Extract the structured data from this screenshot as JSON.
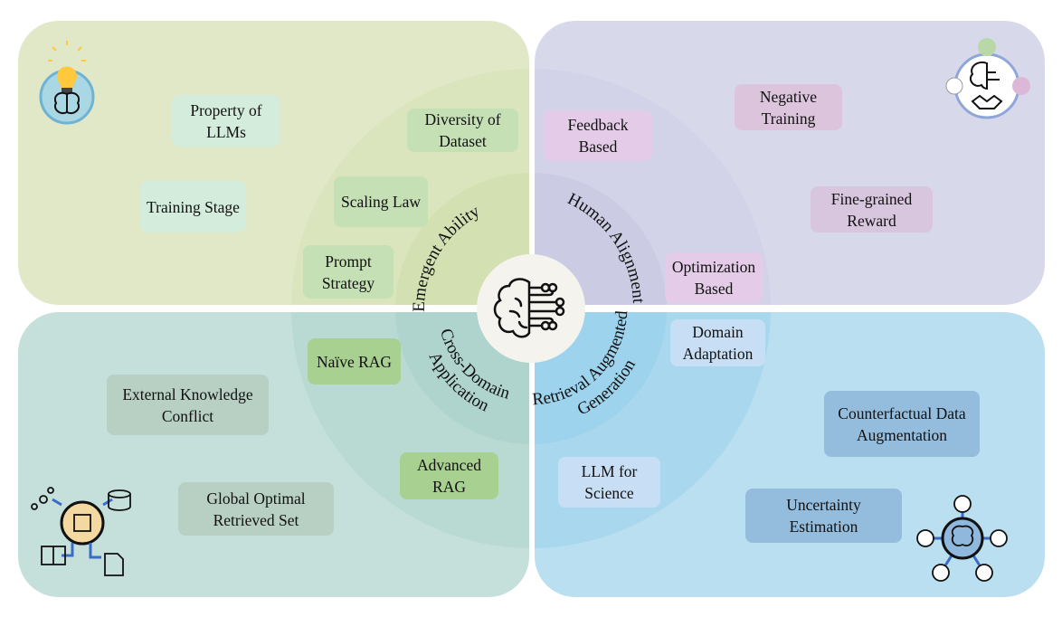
{
  "center": {
    "icon": "brain-circuit-icon"
  },
  "quadrants": {
    "emergent_ability": {
      "label": "Emergent Ability",
      "color": "#e0e8c8",
      "icon": "lightbulb-brain-icon",
      "items": [
        "Property of LLMs",
        "Training Stage",
        "Diversity of Dataset",
        "Scaling Law",
        "Prompt Strategy"
      ]
    },
    "human_alignment": {
      "label": "Human Alignment",
      "color": "#d8d8eb",
      "icon": "brain-ethics-icon",
      "items": [
        "Feedback Based",
        "Negative Training",
        "Fine-grained Reward",
        "Optimization Based"
      ]
    },
    "cross_domain": {
      "label_line1": "Cross-Domain",
      "label_line2": "Application",
      "color": "#c5e0da",
      "icon": "brain-chip-network-icon",
      "items": [
        "Naïve RAG",
        "Advanced RAG",
        "External Knowledge Conflict",
        "Global Optimal Retrieved Set"
      ]
    },
    "rag": {
      "label_line1": "Retrieval Augmented",
      "label_line2": "Generation",
      "color": "#b9dff0",
      "icon": "brain-hub-icon",
      "items": [
        "Domain Adaptation",
        "Counterfactual Data Augmentation",
        "Uncertainty Estimation",
        "LLM for Science"
      ]
    }
  }
}
